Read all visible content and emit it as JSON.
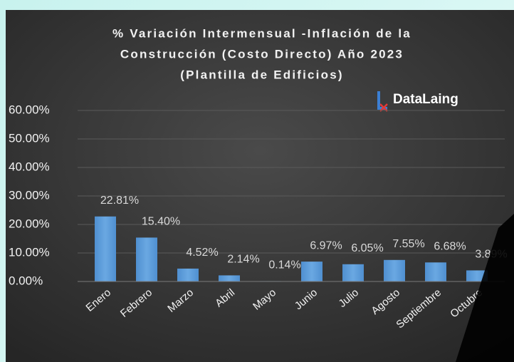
{
  "chart_data": {
    "type": "bar",
    "title": [
      "% Variación Intermensual -Inflación de la",
      "Construcción (Costo Directo) Año 2023",
      "(Plantilla de Edificios)"
    ],
    "logo": "DataLaing",
    "categories": [
      "Enero",
      "Febrero",
      "Marzo",
      "Abril",
      "Mayo",
      "Junio",
      "Julio",
      "Agosto",
      "Septiembre",
      "Octubre"
    ],
    "values": [
      22.81,
      15.4,
      4.52,
      2.14,
      0.14,
      6.97,
      6.05,
      7.55,
      6.68,
      3.89
    ],
    "value_labels": [
      "22.81%",
      "15.40%",
      "4.52%",
      "2.14%",
      "0.14%",
      "6.97%",
      "6.05%",
      "7.55%",
      "6.68%",
      "3.89%"
    ],
    "color": "#5b9bd5",
    "ylim": [
      0,
      60
    ],
    "yticks": [
      {
        "value": 0,
        "label": "0.00%"
      },
      {
        "value": 10,
        "label": "10.00%"
      },
      {
        "value": 20,
        "label": "20.00%"
      },
      {
        "value": 30,
        "label": "30.00%"
      },
      {
        "value": 40,
        "label": "40.00%"
      },
      {
        "value": 50,
        "label": "50.00%"
      },
      {
        "value": 60,
        "label": "60.00%"
      }
    ],
    "grid": true
  }
}
